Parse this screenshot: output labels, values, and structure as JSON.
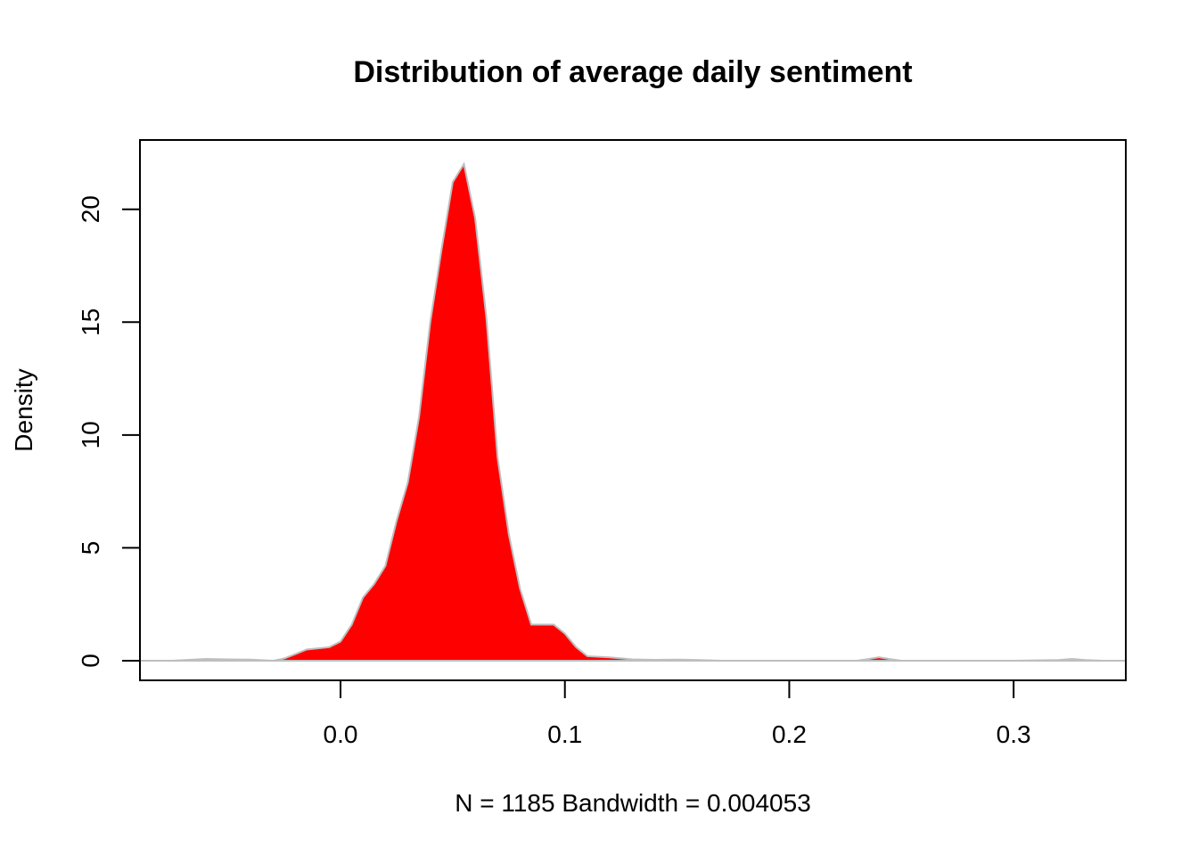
{
  "chart_data": {
    "type": "area",
    "title": "Distribution of average daily sentiment",
    "xlabel": "N = 1185   Bandwidth = 0.004053",
    "ylabel": "Density",
    "xlim": [
      -0.0894,
      0.35
    ],
    "ylim": [
      0,
      22.2
    ],
    "x_ticks": [
      0.0,
      0.1,
      0.2,
      0.3
    ],
    "x_tick_labels": [
      "0.0",
      "0.1",
      "0.2",
      "0.3"
    ],
    "y_ticks": [
      0,
      5,
      10,
      15,
      20
    ],
    "y_tick_labels": [
      "0",
      "5",
      "10",
      "15",
      "20"
    ],
    "grid": false,
    "fill_color": "#ff0000",
    "line_color": "#bebebe",
    "series": [
      {
        "x": [
          -0.0875,
          -0.075,
          -0.06,
          -0.05,
          -0.04,
          -0.03,
          -0.025,
          -0.02,
          -0.015,
          -0.01,
          -0.005,
          0.0,
          0.005,
          0.01,
          0.015,
          0.02,
          0.025,
          0.03,
          0.035,
          0.04,
          0.045,
          0.05,
          0.055,
          0.06,
          0.065,
          0.07,
          0.075,
          0.08,
          0.085,
          0.09,
          0.095,
          0.1,
          0.105,
          0.11,
          0.12,
          0.13,
          0.14,
          0.15,
          0.16,
          0.17,
          0.2,
          0.23,
          0.235,
          0.24,
          0.245,
          0.25,
          0.3,
          0.32,
          0.326,
          0.332,
          0.34,
          0.35
        ],
        "y": [
          0.0,
          0.0,
          0.08,
          0.06,
          0.05,
          0.0,
          0.1,
          0.3,
          0.5,
          0.55,
          0.6,
          0.85,
          1.6,
          2.8,
          3.4,
          4.2,
          6.2,
          7.9,
          10.8,
          15.0,
          18.2,
          21.2,
          22.0,
          19.6,
          15.2,
          9.0,
          5.6,
          3.2,
          1.6,
          1.6,
          1.6,
          1.2,
          0.6,
          0.2,
          0.15,
          0.06,
          0.04,
          0.05,
          0.03,
          0.0,
          0.0,
          0.0,
          0.07,
          0.15,
          0.07,
          0.0,
          0.0,
          0.03,
          0.08,
          0.03,
          0.0,
          0.0
        ]
      }
    ]
  }
}
